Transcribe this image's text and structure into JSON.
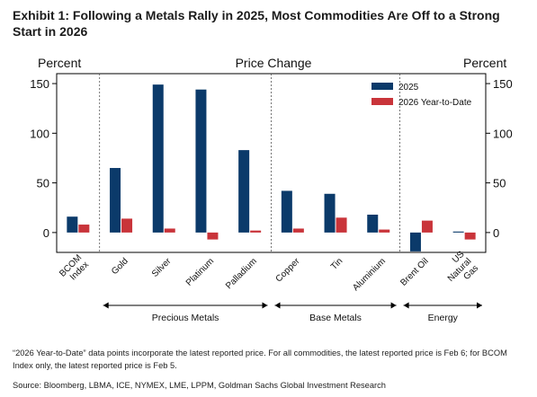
{
  "title": "Exhibit 1: Following a Metals Rally in 2025, Most Commodities Are Off to a Strong Start in 2026",
  "note": "“2026 Year-to-Date” data points incorporate the latest reported price. For all commodities, the latest reported price is Feb 6; for BCOM Index only, the latest reported price is Feb 5.",
  "source": "Source: Bloomberg, LBMA, ICE, NYMEX, LME, LPPM, Goldman Sachs Global Investment Research",
  "colors": {
    "series_2025": "#0b3a6a",
    "series_2026": "#c9343a"
  },
  "chart_data": {
    "type": "bar",
    "title": "Price Change",
    "ylabel_left": "Percent",
    "ylabel_right": "Percent",
    "ylim": [
      -20,
      160
    ],
    "yticks": [
      0,
      50,
      100,
      150
    ],
    "grid": false,
    "legend_position": "top-right",
    "categories": [
      "BCOM Index",
      "Gold",
      "Silver",
      "Platinum",
      "Palladium",
      "Copper",
      "Tin",
      "Aluminium",
      "Brent Oil",
      "US Natural Gas"
    ],
    "category_lines": [
      [
        "BCOM",
        "Index"
      ],
      [
        "Gold"
      ],
      [
        "Silver"
      ],
      [
        "Platinum"
      ],
      [
        "Palladium"
      ],
      [
        "Copper"
      ],
      [
        "Tin"
      ],
      [
        "Aluminium"
      ],
      [
        "Brent Oil"
      ],
      [
        "US",
        "Natural",
        "Gas"
      ]
    ],
    "series": [
      {
        "name": "2025",
        "values": [
          16,
          65,
          149,
          144,
          83,
          42,
          39,
          18,
          -19,
          1
        ]
      },
      {
        "name": "2026 Year-to-Date",
        "values": [
          8,
          14,
          4,
          -7,
          2,
          4,
          15,
          3,
          12,
          -7
        ]
      }
    ],
    "groups": [
      {
        "label": "Precious Metals",
        "start": 1,
        "end": 4
      },
      {
        "label": "Base Metals",
        "start": 5,
        "end": 7
      },
      {
        "label": "Energy",
        "start": 8,
        "end": 9
      }
    ]
  }
}
